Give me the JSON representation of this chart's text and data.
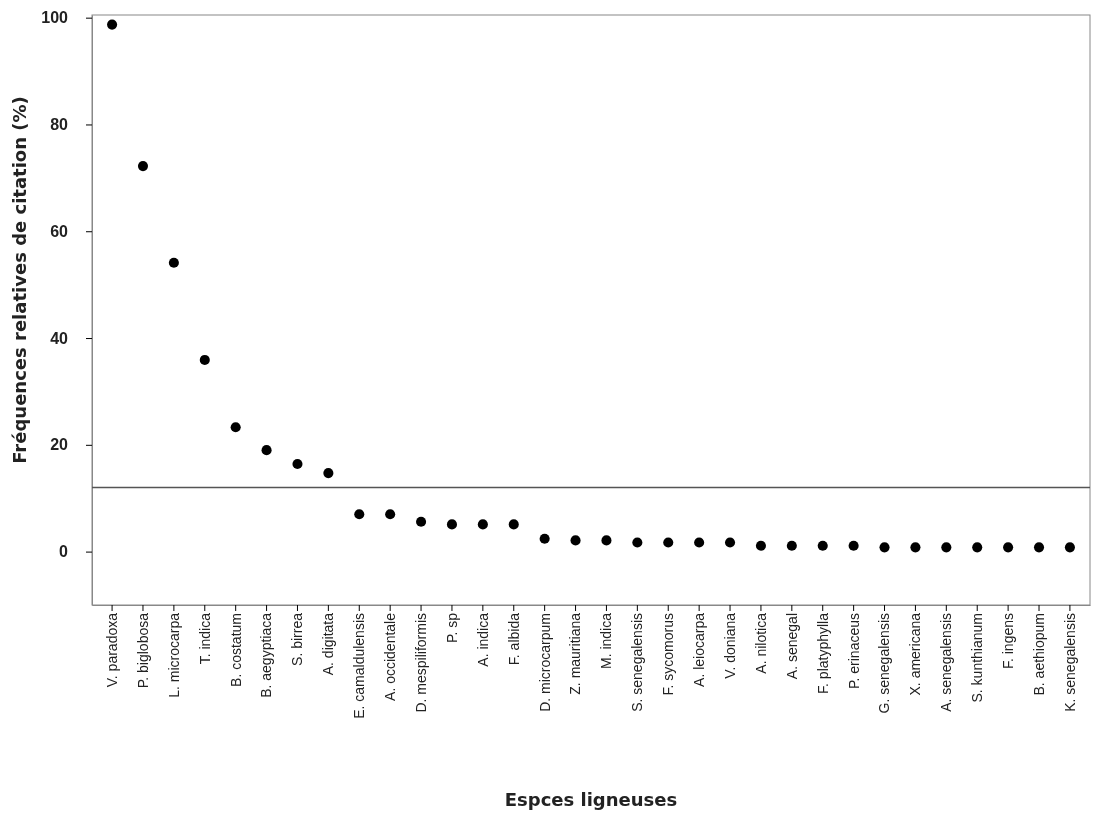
{
  "chart_data": {
    "type": "scatter",
    "xlabel": "Espces ligneuses",
    "ylabel": "Fréquences relatives de citation (%)",
    "categories": [
      "V. paradoxa",
      "P. biglobosa",
      "L. microcarpa",
      "T. indica",
      "B. costatum",
      "B. aegyptiaca",
      "S. birrea",
      "A. digitata",
      "E. camaldulensis",
      "A. occidentale",
      "D. mespiliformis",
      "P. sp",
      "A. indica",
      "F. albida",
      "D. microcarpum",
      "Z. mauritiana",
      "M. indica",
      "S. senegalensis",
      "F. sycomorus",
      "A. leiocarpa",
      "V. doniana",
      "A. nilotica",
      "A. senegal",
      "F. platyphylla",
      "P. erinaceus",
      "G. senegalensis",
      "X. americana",
      "A. senegalensis",
      "S. kunthianum",
      "F. ingens",
      "B. aethiopum",
      "K. senegalensis"
    ],
    "series": [
      {
        "color": "#000000",
        "values": [
          98.7,
          72.2,
          54.1,
          35.9,
          23.3,
          19.0,
          16.4,
          14.7,
          7.0,
          7.0,
          5.6,
          5.1,
          5.1,
          5.1,
          2.4,
          2.1,
          2.1,
          1.7,
          1.7,
          1.7,
          1.7,
          1.1,
          1.1,
          1.1,
          1.1,
          0.8,
          0.8,
          0.8,
          0.8,
          0.8,
          0.8,
          0.8
        ]
      }
    ],
    "ylim": [
      -10,
      100.5
    ],
    "yticks": [
      0,
      20,
      40,
      60,
      80,
      100
    ],
    "grid": false,
    "marker": "circle",
    "ref_lines": [
      {
        "axis": "y",
        "value": 12,
        "color": "#555555"
      }
    ]
  }
}
